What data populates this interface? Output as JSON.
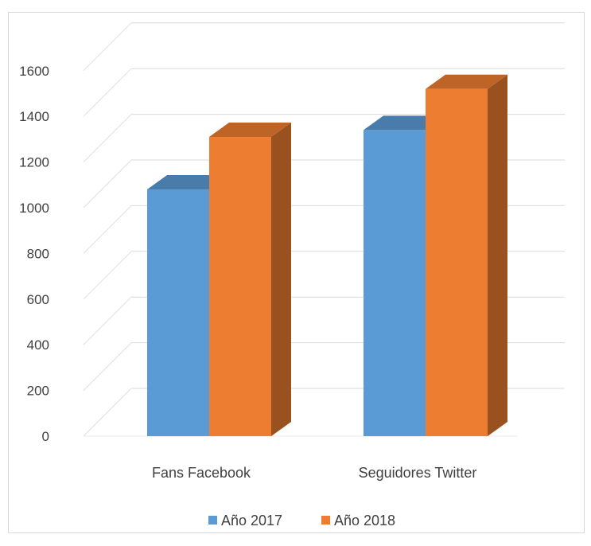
{
  "chart_data": {
    "type": "bar",
    "categories": [
      "Fans Facebook",
      "Seguidores Twitter"
    ],
    "series": [
      {
        "name": "Año 2017",
        "values": [
          1080,
          1340
        ],
        "color": "#5b9bd5"
      },
      {
        "name": "Año 2018",
        "values": [
          1310,
          1520
        ],
        "color": "#ed7d31"
      }
    ],
    "ylim": [
      0,
      1600
    ],
    "yticks": [
      "0",
      "200",
      "400",
      "600",
      "800",
      "1000",
      "1200",
      "1400",
      "1600"
    ],
    "grid": true,
    "legend_position": "bottom",
    "title": "",
    "xlabel": "",
    "ylabel": ""
  }
}
